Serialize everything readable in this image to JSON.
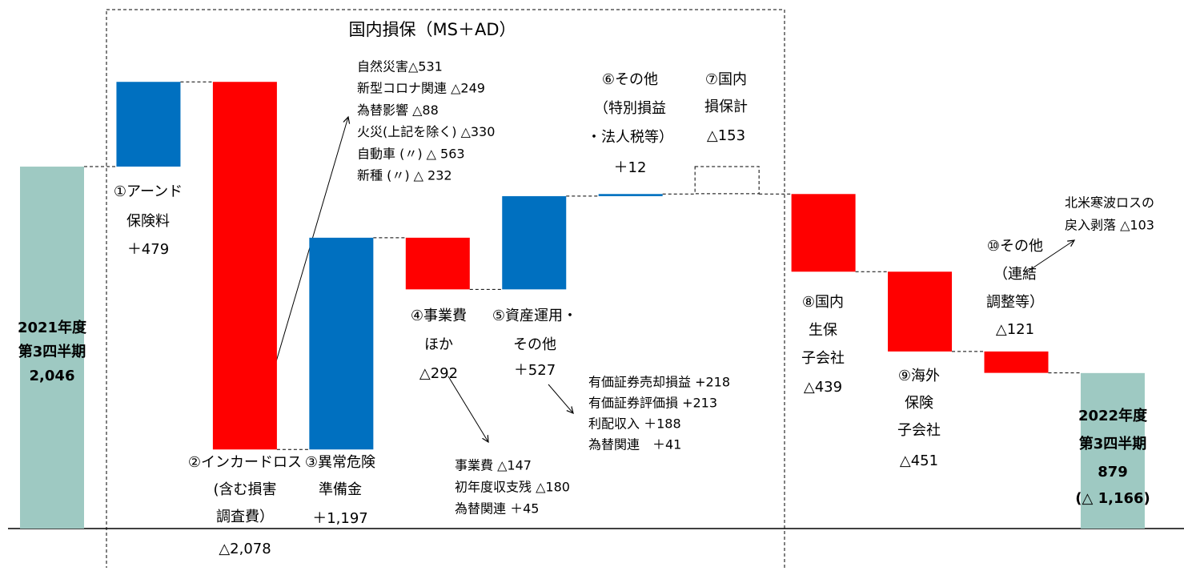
{
  "chart_data": {
    "type": "waterfall",
    "title": "国内損保（MS＋AD）",
    "categories": [
      [
        "2021年度",
        "第3四半期"
      ],
      [
        "①アーンド",
        "保険料"
      ],
      [
        "②インカードロス",
        "(含む損害",
        "調査費）"
      ],
      [
        "③異常危険",
        "準備金"
      ],
      [
        "④事業費",
        "ほか"
      ],
      [
        "⑤資産運用・",
        "その他"
      ],
      [
        "⑥その他",
        "（特別損益",
        "・法人税等）"
      ],
      [
        "⑦国内",
        "損保計"
      ],
      [
        "⑧国内",
        "生保",
        "子会社"
      ],
      [
        "⑨海外",
        "保険",
        "子会社"
      ],
      [
        "⑩その他",
        "（連結",
        "調整等）"
      ],
      [
        "2022年度",
        "第3四半期"
      ]
    ],
    "kinds": [
      "total",
      "delta",
      "delta",
      "delta",
      "delta",
      "delta",
      "delta",
      "subtotal",
      "delta",
      "delta",
      "delta",
      "total"
    ],
    "values": [
      2046,
      479,
      -2078,
      1197,
      -292,
      527,
      12,
      -153,
      -439,
      -451,
      -121,
      879
    ],
    "value_labels": [
      "2,046",
      "＋479",
      "△2,078",
      "＋1,197",
      "△292",
      "＋527",
      "＋12",
      "△153",
      "△439",
      "△451",
      "△121",
      "879"
    ],
    "end_note": "(△ 1,166)",
    "colors": {
      "total": "#9ec9c2",
      "increase": "#0070c0",
      "decrease": "#ff0000"
    },
    "annotations": [
      [
        "自然災害△531",
        "新型コロナ関連 △249",
        "為替影響 △88",
        "火災(上記を除く) △330",
        "自動車 (〃) △ 563",
        "新種 (〃) △ 232"
      ],
      [
        "有価証券売却損益 +218",
        "有価証券評価損 +213",
        "利配収入 ＋188",
        "為替関連　＋41"
      ],
      [
        "事業費 △147",
        "初年度収支残 △180",
        "為替関連 ＋45"
      ],
      [
        "北米寒波ロスの",
        "戻入剥落 △103"
      ]
    ]
  }
}
